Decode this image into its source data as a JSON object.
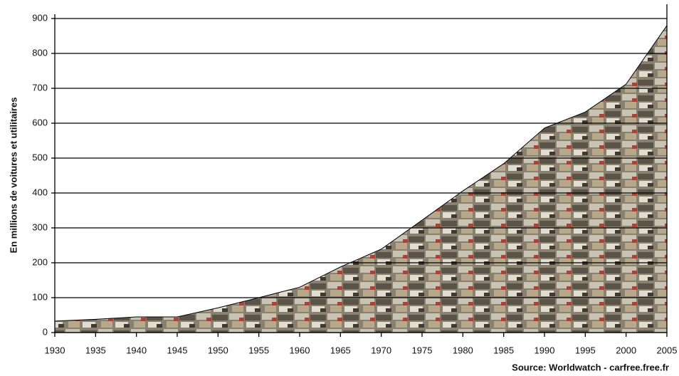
{
  "chart_data": {
    "type": "area",
    "y_label": "En millions de voitures et utilitaires",
    "source": "Source: Worldwatch - carfree.free.fr",
    "x": [
      1930,
      1935,
      1940,
      1945,
      1950,
      1955,
      1960,
      1965,
      1970,
      1975,
      1980,
      1985,
      1990,
      1995,
      2000,
      2005
    ],
    "values": [
      33,
      38,
      45,
      45,
      71,
      100,
      130,
      188,
      239,
      322,
      406,
      484,
      586,
      632,
      712,
      880
    ],
    "color": "#8a8070",
    "xlim": [
      1930,
      2005
    ],
    "xticks": [
      1930,
      1935,
      1940,
      1945,
      1950,
      1955,
      1960,
      1965,
      1970,
      1975,
      1980,
      1985,
      1990,
      1995,
      2000,
      2005
    ],
    "ylim": [
      0,
      900
    ],
    "yticks": [
      0,
      100,
      200,
      300,
      400,
      500,
      600,
      700,
      800,
      900
    ],
    "grid": true
  }
}
